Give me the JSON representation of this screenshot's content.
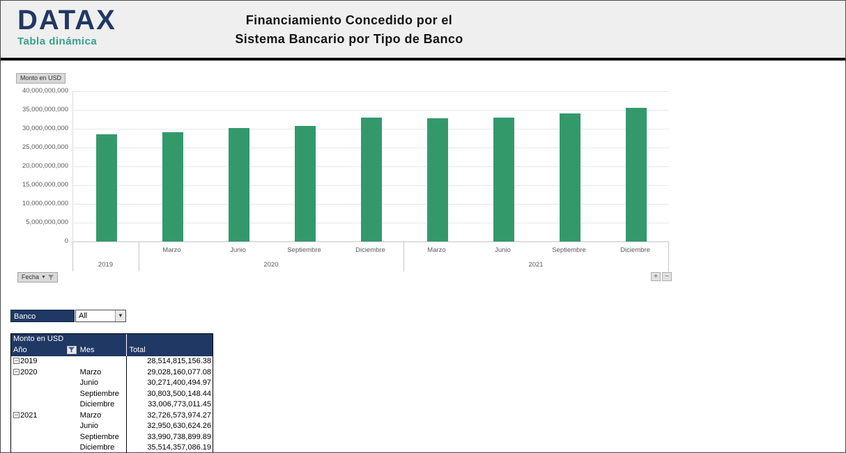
{
  "header": {
    "logo_title": "DATAX",
    "logo_subtitle": "Tabla dinámica",
    "title_line1": "Financiamiento Concedido por el",
    "title_line2": "Sistema Bancario por Tipo de Banco"
  },
  "chart": {
    "value_field_button": "Monto en USD",
    "axis_field_button": "Fecha",
    "expand_label": "+",
    "collapse_label": "−"
  },
  "chart_data": {
    "type": "bar",
    "title": "Financiamiento Concedido por el Sistema Bancario por Tipo de Banco",
    "ylabel": "Monto en USD",
    "xlabel": "Fecha",
    "ylim": [
      0,
      40000000000
    ],
    "ytick_step": 5000000000,
    "ytick_labels": [
      "40,000,000,000",
      "35,000,000,000",
      "30,000,000,000",
      "25,000,000,000",
      "20,000,000,000",
      "15,000,000,000",
      "10,000,000,000",
      "5,000,000,000",
      "0"
    ],
    "grid": true,
    "legend": "none",
    "bar_color": "#33996b",
    "groups": [
      {
        "year": "2019",
        "bars": [
          {
            "month": "",
            "value": 28514815156.38
          }
        ]
      },
      {
        "year": "2020",
        "bars": [
          {
            "month": "Marzo",
            "value": 29028160077.08
          },
          {
            "month": "Junio",
            "value": 30271400494.97
          },
          {
            "month": "Septiembre",
            "value": 30803500148.44
          },
          {
            "month": "Diciembre",
            "value": 33006773011.45
          }
        ]
      },
      {
        "year": "2021",
        "bars": [
          {
            "month": "Marzo",
            "value": 32726573974.27
          },
          {
            "month": "Junio",
            "value": 32950630624.26
          },
          {
            "month": "Septiembre",
            "value": 33990738899.89
          },
          {
            "month": "Diciembre",
            "value": 35514357086.19
          }
        ]
      }
    ]
  },
  "filter": {
    "label": "Banco",
    "value": "All"
  },
  "pivot_table": {
    "value_field": "Monto en USD",
    "columns": {
      "year": "Año",
      "month": "Mes",
      "total": "Total"
    },
    "rows": [
      {
        "year": "2019",
        "month": "",
        "total": "28,514,815,156.38"
      },
      {
        "year": "2020",
        "month": "Marzo",
        "total": "29,028,160,077.08"
      },
      {
        "year": "",
        "month": "Junio",
        "total": "30,271,400,494.97"
      },
      {
        "year": "",
        "month": "Septiembre",
        "total": "30,803,500,148.44"
      },
      {
        "year": "",
        "month": "Diciembre",
        "total": "33,006,773,011.45"
      },
      {
        "year": "2021",
        "month": "Marzo",
        "total": "32,726,573,974.27"
      },
      {
        "year": "",
        "month": "Junio",
        "total": "32,950,630,624.26"
      },
      {
        "year": "",
        "month": "Septiembre",
        "total": "33,990,738,899.89"
      },
      {
        "year": "",
        "month": "Diciembre",
        "total": "35,514,357,086.19"
      }
    ]
  }
}
